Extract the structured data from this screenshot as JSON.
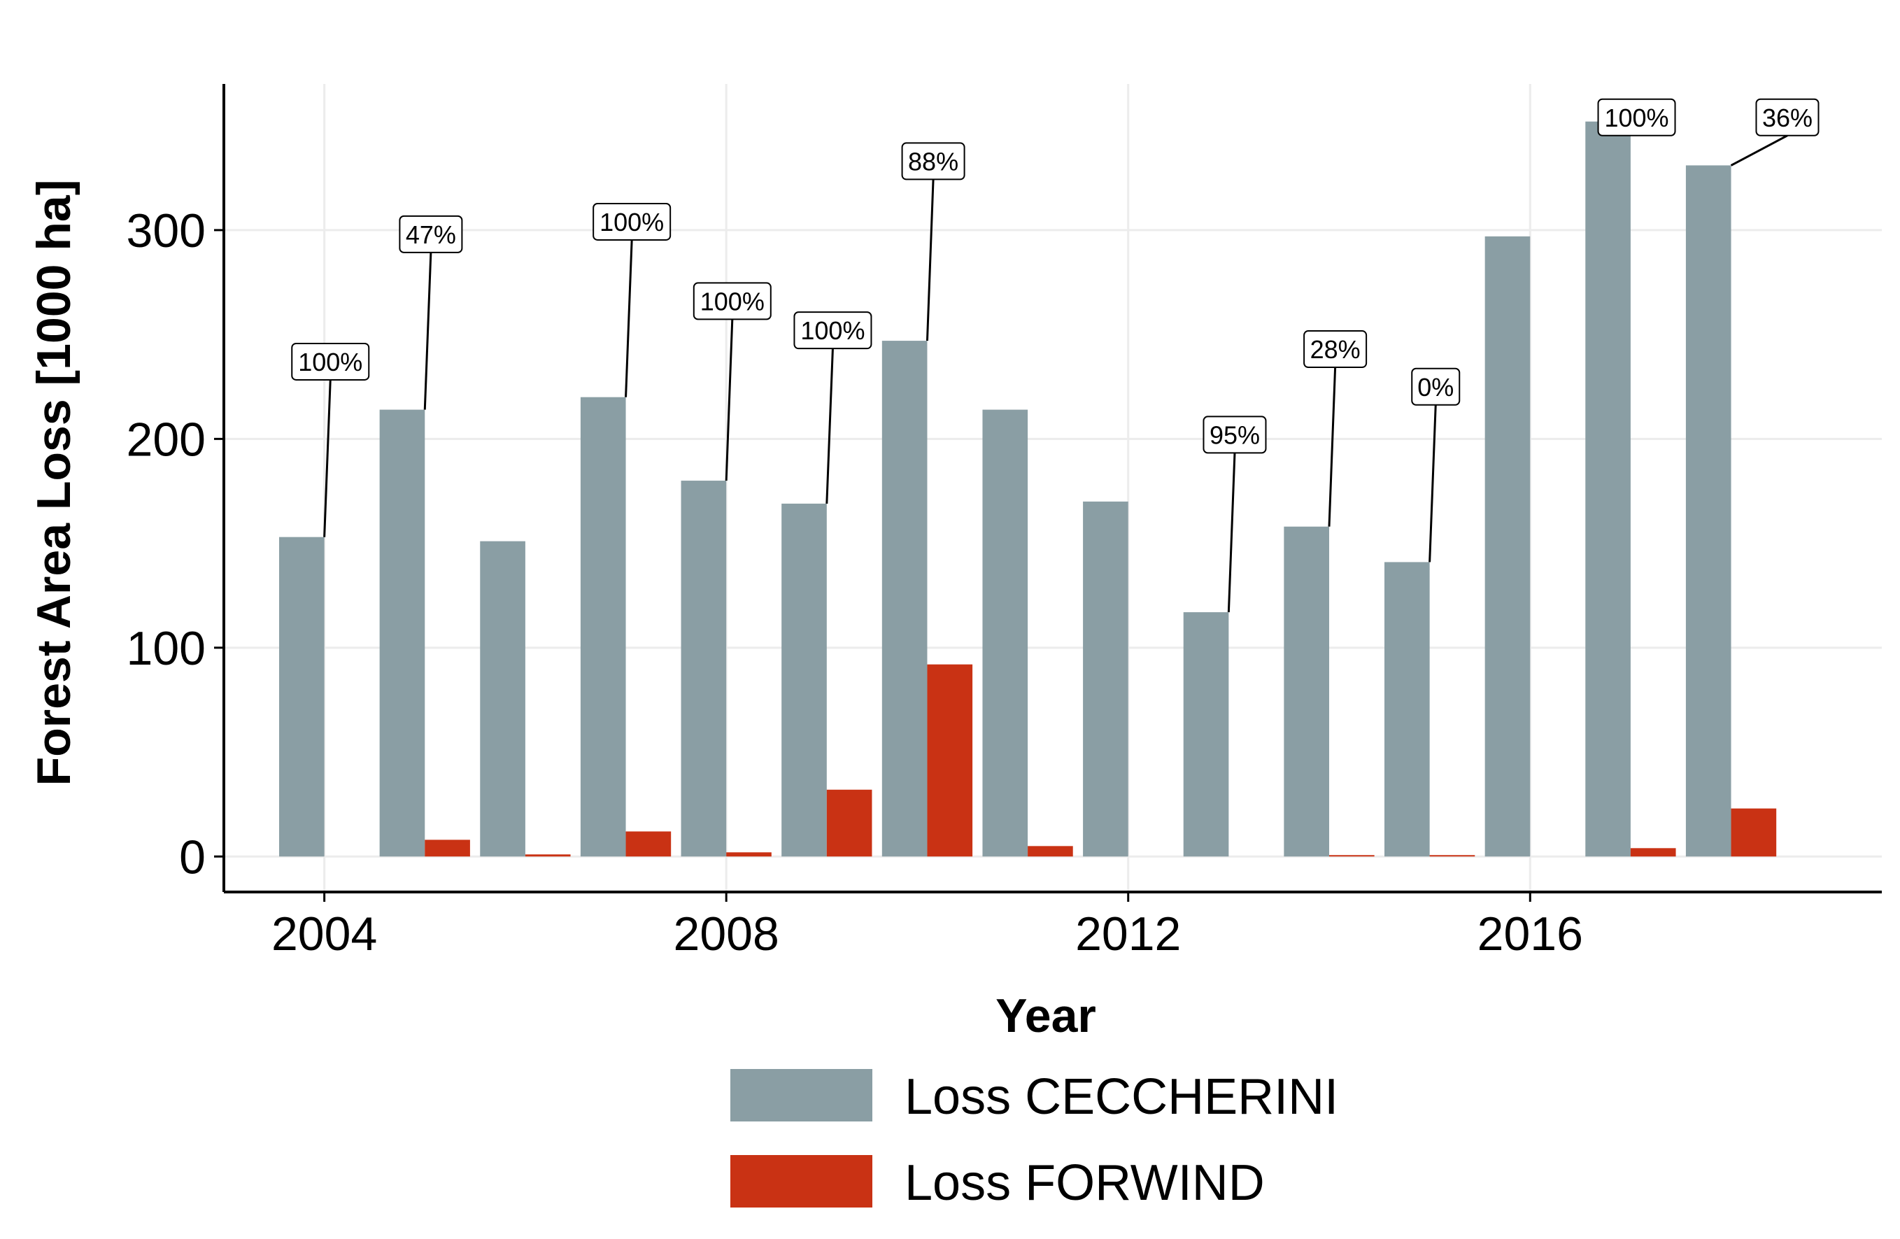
{
  "chart_data": {
    "type": "bar",
    "xlabel": "Year",
    "ylabel": "Forest Area Loss [1000 ha]",
    "xlim": [
      2003,
      2019.5
    ],
    "ylim": [
      -17,
      370
    ],
    "x_ticks": [
      2004,
      2008,
      2012,
      2016
    ],
    "y_ticks": [
      0,
      100,
      200,
      300
    ],
    "grid": true,
    "legend_position": "bottom",
    "colors": {
      "ceccherini": "#8a9ea4",
      "forwind": "#c93214",
      "grid": "#ececec"
    },
    "categories": [
      2004,
      2005,
      2006,
      2007,
      2008,
      2009,
      2010,
      2011,
      2012,
      2013,
      2014,
      2015,
      2016,
      2017,
      2018
    ],
    "series": [
      {
        "name": "Loss CECCHERINI",
        "values": [
          153,
          214,
          151,
          220,
          180,
          169,
          247,
          214,
          170,
          117,
          158,
          141,
          297,
          352,
          331
        ]
      },
      {
        "name": "Loss FORWIND",
        "values": [
          0,
          8,
          1,
          12,
          2,
          32,
          92,
          5,
          0,
          0,
          0.4,
          0.4,
          0,
          4,
          23
        ]
      }
    ],
    "annotations": [
      {
        "x": 2004,
        "text": "100%",
        "label_y": 237
      },
      {
        "x": 2005,
        "text": "47%",
        "label_y": 298
      },
      {
        "x": 2007,
        "text": "100%",
        "label_y": 304
      },
      {
        "x": 2008,
        "text": "100%",
        "label_y": 266
      },
      {
        "x": 2009,
        "text": "100%",
        "label_y": 252
      },
      {
        "x": 2010,
        "text": "88%",
        "label_y": 333
      },
      {
        "x": 2013,
        "text": "95%",
        "label_y": 202
      },
      {
        "x": 2014,
        "text": "28%",
        "label_y": 243
      },
      {
        "x": 2015,
        "text": "0%",
        "label_y": 225
      },
      {
        "x": 2017,
        "text": "100%",
        "label_y": 354
      },
      {
        "x": 2018,
        "text": "36%",
        "label_y": 354
      }
    ]
  }
}
